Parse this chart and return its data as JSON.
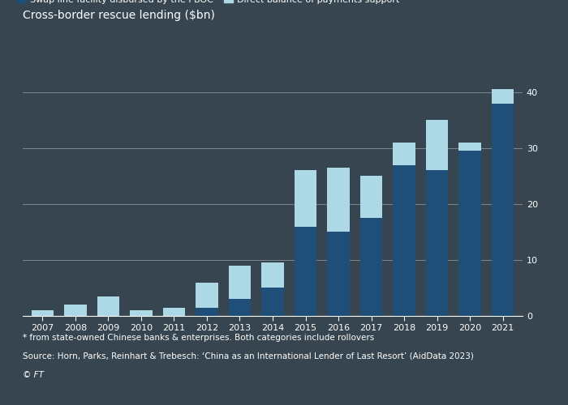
{
  "title": "Cross-border rescue lending ($bn)",
  "years": [
    2007,
    2008,
    2009,
    2010,
    2011,
    2012,
    2013,
    2014,
    2015,
    2016,
    2017,
    2018,
    2019,
    2020,
    2021
  ],
  "swap_line": [
    0.0,
    0.0,
    0.0,
    0.0,
    0.0,
    1.5,
    3.0,
    5.0,
    16.0,
    15.0,
    17.5,
    27.0,
    26.0,
    29.5,
    38.0
  ],
  "direct_bop": [
    1.0,
    2.0,
    3.5,
    1.0,
    1.5,
    4.5,
    6.0,
    4.5,
    10.0,
    11.5,
    7.5,
    4.0,
    9.0,
    1.5,
    2.5
  ],
  "color_swap": "#1f4e79",
  "color_direct": "#add8e6",
  "legend_swap": "Swap line facility disbursed by the PBOC",
  "legend_direct": "Direct balance of payments support*",
  "ylim": [
    0,
    42
  ],
  "yticks": [
    0,
    10,
    20,
    30,
    40
  ],
  "footnote1": "* from state-owned Chinese banks & enterprises. Both categories include rollovers",
  "footnote2": "Source: Horn, Parks, Reinhart & Trebesch: ‘China as an International Lender of Last Resort’ (AidData 2023)",
  "footnote3": "© FT",
  "bg_color": "#36454f",
  "grid_color": "#ffffff"
}
